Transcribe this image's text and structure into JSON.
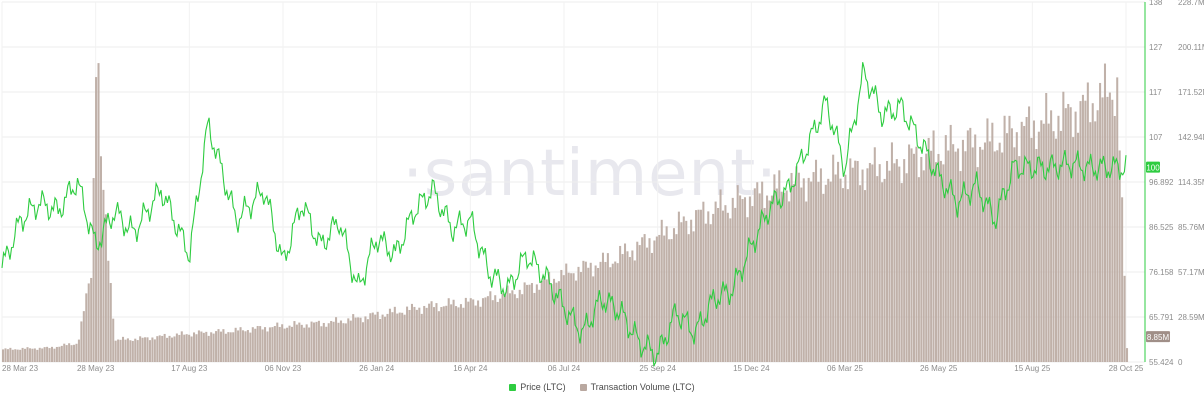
{
  "chart_data": {
    "type": "line",
    "watermark": "·santiment·",
    "x_tick_labels": [
      "28 Mar 23",
      "28 May 23",
      "17 Aug 23",
      "06 Nov 23",
      "26 Jan 24",
      "16 Apr 24",
      "06 Jul 24",
      "25 Sep 24",
      "15 Dec 24",
      "06 Mar 25",
      "26 May 25",
      "15 Aug 25",
      "28 Oct 25"
    ],
    "y_left": {
      "tick_labels": [
        "138",
        "127",
        "117",
        "107",
        "96.892",
        "86.525",
        "76.158",
        "65.791",
        "55.424"
      ],
      "range": [
        55.424,
        138
      ],
      "current_value": "100",
      "color": "#2ecc40"
    },
    "y_right": {
      "tick_labels": [
        "228.7M",
        "200.11M",
        "171.52M",
        "142.94M",
        "114.35M",
        "85.76M",
        "57.17M",
        "28.59M",
        "0"
      ],
      "range": [
        0,
        228.7
      ],
      "unit": "M",
      "current_value": "8.85M",
      "color": "#b9a8a0"
    },
    "series": [
      {
        "name": "Price (LTC)",
        "kind": "line",
        "axis": "left",
        "color": "#2ecc40",
        "x": [
          0,
          0.2,
          0.4,
          0.6,
          0.8,
          1,
          1.2,
          1.4,
          1.7,
          2,
          2.2,
          2.5,
          2.8,
          3,
          3.2,
          3.4,
          3.6,
          3.8,
          4,
          4.2,
          4.4,
          4.6,
          4.8,
          5,
          5.2,
          5.4,
          5.6,
          5.8,
          6,
          6.2,
          6.4,
          6.6,
          6.8,
          7,
          7.2,
          7.4,
          7.6,
          7.8,
          8,
          8.2,
          8.4,
          8.6,
          8.8,
          9,
          9.2,
          9.4,
          9.6,
          9.8,
          10,
          10.2,
          10.4,
          10.6,
          10.8,
          11,
          11.2,
          11.4,
          11.6,
          11.8,
          12
        ],
        "values": [
          77,
          88,
          92,
          90,
          97,
          82,
          90,
          85,
          95,
          80,
          110,
          88,
          95,
          78,
          92,
          82,
          88,
          72,
          84,
          80,
          90,
          95,
          86,
          88,
          76,
          72,
          80,
          75,
          68,
          62,
          70,
          67,
          60,
          57,
          67,
          62,
          70,
          72,
          82,
          91,
          95,
          105,
          115,
          100,
          122,
          112,
          114,
          106,
          98,
          92,
          96,
          88,
          100,
          100,
          100,
          101,
          100,
          100,
          100
        ]
      },
      {
        "name": "Transaction Volume (LTC)",
        "kind": "bar",
        "axis": "right",
        "color": "#b9a8a0",
        "x": [
          0,
          0.5,
          0.8,
          0.95,
          1,
          1.05,
          1.2,
          1.5,
          2,
          2.5,
          3,
          3.5,
          4,
          4.5,
          5,
          5.5,
          6,
          6.5,
          7,
          7.5,
          8,
          8.5,
          9,
          9.5,
          10,
          10.5,
          11,
          11.5,
          11.9,
          12
        ],
        "values": [
          8,
          9,
          12,
          60,
          225,
          120,
          14,
          15,
          18,
          20,
          23,
          25,
          30,
          35,
          38,
          45,
          56,
          65,
          80,
          95,
          105,
          115,
          120,
          125,
          135,
          140,
          150,
          160,
          175,
          8.85
        ]
      }
    ],
    "legend_position": "bottom-center",
    "grid": true
  }
}
